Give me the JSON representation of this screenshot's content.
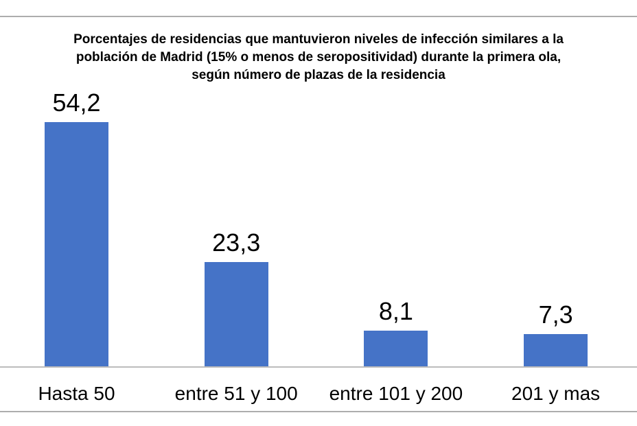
{
  "chart_data": {
    "type": "bar",
    "title": "Porcentajes de residencias que mantuvieron niveles de infección similares a la población de Madrid (15% o menos de seropositividad) durante la primera ola, según número de plazas de la residencia",
    "title_lines": [
      "Porcentajes de residencias que mantuvieron niveles de infección similares a la",
      "población de Madrid (15% o menos de seropositividad) durante la primera ola,",
      "según número de plazas de la residencia"
    ],
    "categories": [
      "Hasta 50",
      "entre 51 y 100",
      "entre 101 y 200",
      "201 y mas"
    ],
    "values": [
      54.2,
      23.3,
      8.1,
      7.3
    ],
    "value_labels": [
      "54,2",
      "23,3",
      "8,1",
      "7,3"
    ],
    "xlabel": "",
    "ylabel": "",
    "ylim": [
      0,
      60
    ],
    "grid": false,
    "legend": "none",
    "y_axis_visible": false,
    "data_labels_position": "outside-end",
    "bar_color": "#4573c7",
    "axis_line_color": "#bcbcbc",
    "frame_border_color": "#adadad",
    "text_color": "#000000"
  }
}
